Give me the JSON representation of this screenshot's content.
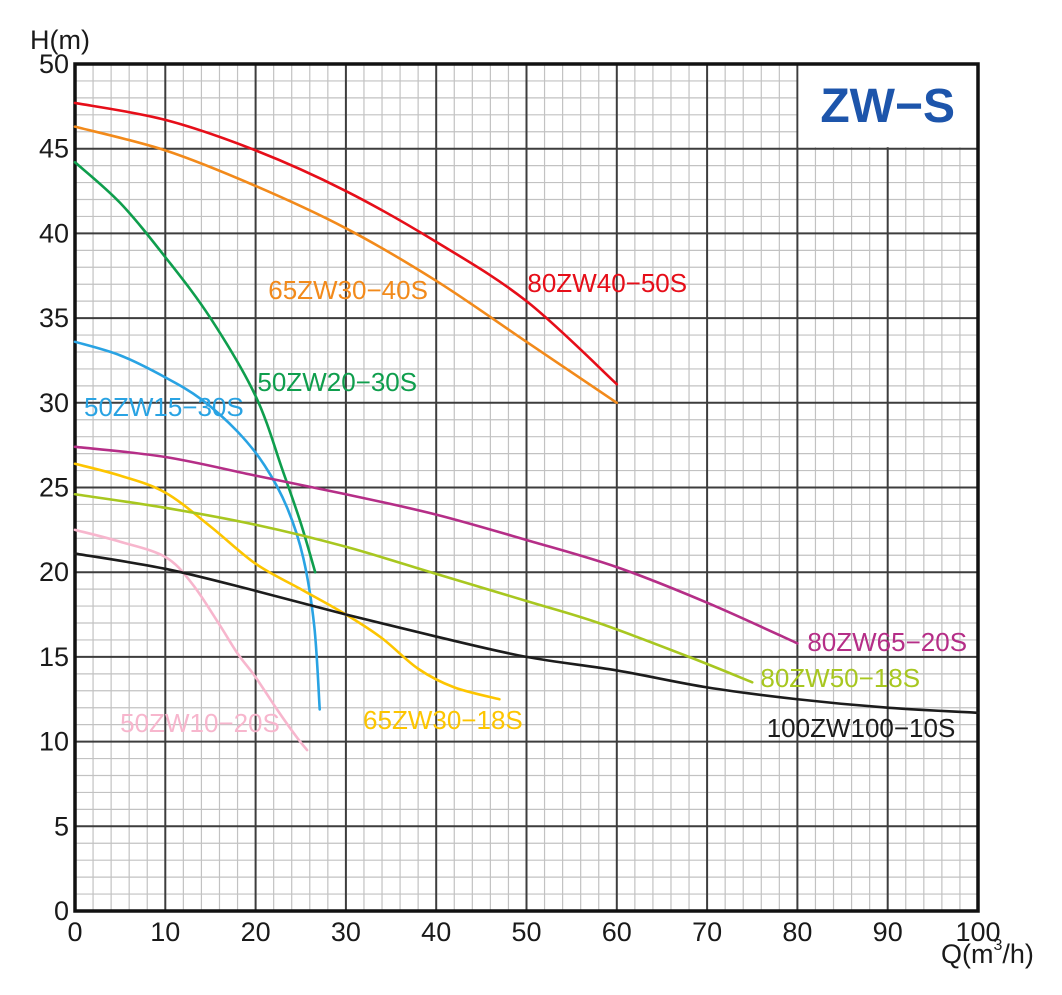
{
  "title": {
    "text": "ZW−S",
    "color": "#1d55ab"
  },
  "chart_data": {
    "type": "line",
    "title": "ZW−S",
    "xlabel": "Q(m³/h)",
    "ylabel": "H(m)",
    "xlim": [
      0,
      100
    ],
    "ylim": [
      0,
      50
    ],
    "x_major_step": 10,
    "x_minor_step": 2,
    "y_major_step": 5,
    "y_minor_step": 1,
    "x_ticks": [
      0,
      10,
      20,
      30,
      40,
      50,
      60,
      70,
      80,
      90,
      100
    ],
    "y_ticks": [
      0,
      5,
      10,
      15,
      20,
      25,
      30,
      35,
      40,
      45,
      50
    ],
    "grid": true,
    "series": [
      {
        "name": "80ZW40−50S",
        "color": "#e60e19",
        "points": [
          [
            0,
            47.7
          ],
          [
            10,
            46.7
          ],
          [
            20,
            44.9
          ],
          [
            30,
            42.5
          ],
          [
            40,
            39.5
          ],
          [
            50,
            36.0
          ],
          [
            60,
            31.1
          ]
        ],
        "label": {
          "x": 50.1,
          "y": 36.55,
          "anchor": "start"
        }
      },
      {
        "name": "65ZW30−40S",
        "color": "#f28a1b",
        "points": [
          [
            0,
            46.3
          ],
          [
            10,
            44.9
          ],
          [
            20,
            42.8
          ],
          [
            30,
            40.3
          ],
          [
            40,
            37.2
          ],
          [
            50,
            33.6
          ],
          [
            60,
            30.0
          ]
        ],
        "label": {
          "x": 21.4,
          "y": 36.13,
          "anchor": "start"
        }
      },
      {
        "name": "50ZW20−30S",
        "color": "#0f9e4d",
        "points": [
          [
            0,
            44.2
          ],
          [
            5,
            41.8
          ],
          [
            10,
            38.6
          ],
          [
            15,
            35.0
          ],
          [
            20,
            30.4
          ],
          [
            23,
            26.0
          ],
          [
            25,
            22.9
          ],
          [
            26.6,
            20.0
          ]
        ],
        "label": {
          "x": 20.2,
          "y": 30.7,
          "anchor": "start"
        }
      },
      {
        "name": "50ZW15−30S",
        "color": "#29a3e3",
        "points": [
          [
            0,
            33.6
          ],
          [
            5,
            32.8
          ],
          [
            10,
            31.5
          ],
          [
            14,
            30.2
          ],
          [
            18,
            28.3
          ],
          [
            21,
            26.3
          ],
          [
            23.5,
            23.8
          ],
          [
            25.3,
            20.8
          ],
          [
            26.5,
            16.8
          ],
          [
            27.1,
            11.9
          ]
        ],
        "label": {
          "x": 1.0,
          "y": 29.22,
          "anchor": "start"
        }
      },
      {
        "name": "80ZW65−20S",
        "color": "#b52e87",
        "points": [
          [
            0,
            27.4
          ],
          [
            10,
            26.8
          ],
          [
            20,
            25.7
          ],
          [
            30,
            24.6
          ],
          [
            40,
            23.4
          ],
          [
            50,
            21.9
          ],
          [
            60,
            20.3
          ],
          [
            70,
            18.2
          ],
          [
            80,
            15.8
          ]
        ],
        "label": {
          "x": 81.1,
          "y": 15.35,
          "anchor": "start"
        }
      },
      {
        "name": "65ZW30−18S",
        "color": "#fdc500",
        "points": [
          [
            0,
            26.4
          ],
          [
            5,
            25.7
          ],
          [
            10,
            24.7
          ],
          [
            15,
            22.7
          ],
          [
            20,
            20.5
          ],
          [
            25,
            19.0
          ],
          [
            30,
            17.5
          ],
          [
            34,
            16.1
          ],
          [
            38,
            14.3
          ],
          [
            42,
            13.2
          ],
          [
            47,
            12.5
          ]
        ],
        "label": {
          "x": 31.9,
          "y": 10.74,
          "anchor": "start"
        }
      },
      {
        "name": "80ZW50−18S",
        "color": "#a8c720",
        "points": [
          [
            0,
            24.6
          ],
          [
            10,
            23.8
          ],
          [
            20,
            22.8
          ],
          [
            30,
            21.5
          ],
          [
            40,
            19.9
          ],
          [
            50,
            18.3
          ],
          [
            58,
            17.0
          ],
          [
            68,
            15.0
          ],
          [
            75,
            13.5
          ]
        ],
        "label": {
          "x": 75.9,
          "y": 13.22,
          "anchor": "start"
        }
      },
      {
        "name": "50ZW10−20S",
        "color": "#f7b6cd",
        "points": [
          [
            0,
            22.5
          ],
          [
            5,
            21.8
          ],
          [
            10,
            20.9
          ],
          [
            13,
            19.3
          ],
          [
            16,
            16.9
          ],
          [
            18,
            15.2
          ],
          [
            20,
            13.8
          ],
          [
            22.5,
            11.8
          ],
          [
            24.5,
            10.3
          ],
          [
            25.7,
            9.5
          ]
        ],
        "label": {
          "x": 5.0,
          "y": 10.57,
          "anchor": "start"
        }
      },
      {
        "name": "100ZW100−10S",
        "color": "#1c1c1c",
        "points": [
          [
            0,
            21.1
          ],
          [
            10,
            20.2
          ],
          [
            20,
            18.9
          ],
          [
            30,
            17.5
          ],
          [
            40,
            16.2
          ],
          [
            50,
            15.0
          ],
          [
            60,
            14.2
          ],
          [
            70,
            13.2
          ],
          [
            80,
            12.5
          ],
          [
            90,
            12.0
          ],
          [
            100,
            11.7
          ]
        ],
        "label": {
          "x": 76.6,
          "y": 10.27,
          "anchor": "start"
        }
      }
    ]
  },
  "style": {
    "minor_grid_color": "#c2c2c2",
    "major_grid_color": "#3d3d3d",
    "frame_color": "#111111",
    "tick_label_color": "#1a1a1a",
    "background": "#ffffff"
  }
}
